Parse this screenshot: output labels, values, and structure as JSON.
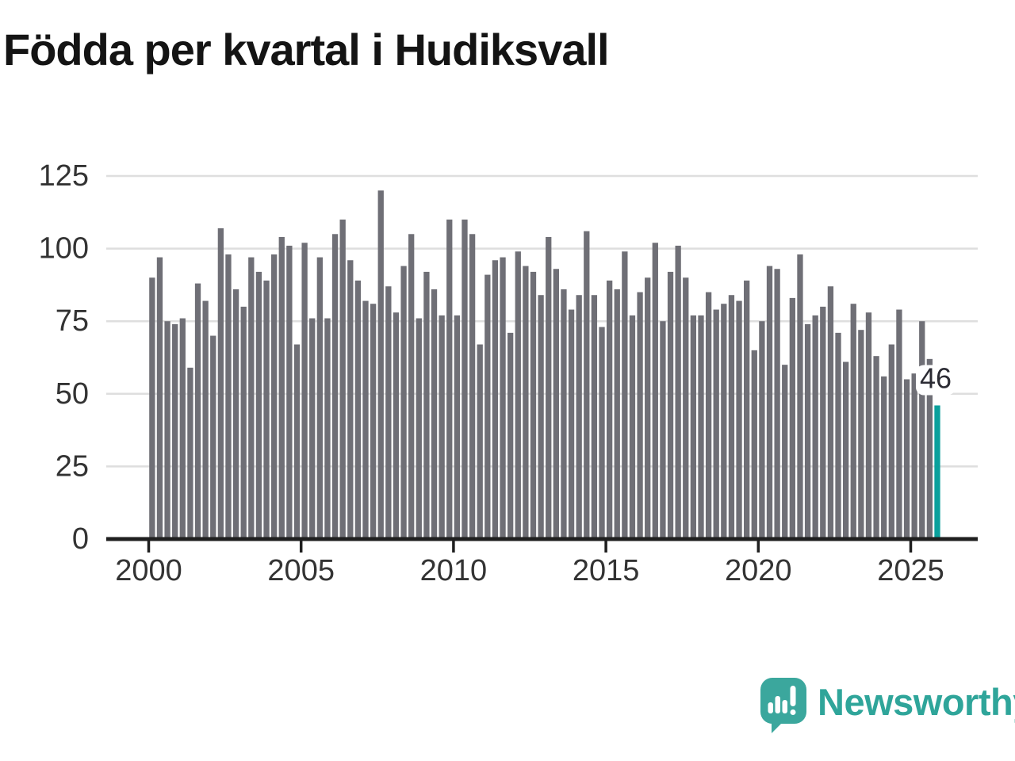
{
  "title": "Födda per kvartal i Hudiksvall",
  "chart_data": {
    "type": "bar",
    "start_period": "2000 Q1",
    "end_period": "2025 Q4",
    "frequency": "quarterly",
    "values": [
      90,
      97,
      75,
      74,
      76,
      59,
      88,
      82,
      70,
      107,
      98,
      86,
      80,
      97,
      92,
      89,
      98,
      104,
      101,
      67,
      102,
      76,
      97,
      76,
      105,
      110,
      96,
      89,
      82,
      81,
      120,
      87,
      78,
      94,
      105,
      76,
      92,
      86,
      77,
      110,
      77,
      110,
      105,
      67,
      91,
      96,
      97,
      71,
      99,
      94,
      92,
      84,
      104,
      93,
      86,
      79,
      84,
      106,
      84,
      73,
      89,
      86,
      99,
      77,
      85,
      90,
      102,
      75,
      92,
      101,
      90,
      77,
      77,
      85,
      79,
      81,
      84,
      82,
      89,
      65,
      75,
      94,
      93,
      60,
      83,
      98,
      74,
      77,
      80,
      87,
      71,
      61,
      81,
      72,
      78,
      63,
      56,
      67,
      79,
      55,
      57,
      75,
      62,
      46
    ],
    "highlight": {
      "index": 103,
      "value": 46,
      "label": "46"
    },
    "y_ticks": [
      0,
      25,
      50,
      75,
      100,
      125
    ],
    "x_ticks": [
      "2000",
      "2005",
      "2010",
      "2015",
      "2020",
      "2025"
    ],
    "ylim": [
      0,
      125
    ],
    "grid": true,
    "legend": "none",
    "title": "Födda per kvartal i Hudiksvall",
    "xlabel": "",
    "ylabel": ""
  },
  "annotation": {
    "last_value_label": "46"
  },
  "logo": {
    "text": "Newsworthy",
    "icon": "newsworthy-speech-bubble-chart-icon"
  },
  "colors": {
    "background": "#ffffff",
    "bar": "#6f6f76",
    "highlight_bar": "#0aa09c",
    "grid": "#dedede",
    "axis": "#1f1f1f",
    "tick_label": "#333333",
    "title": "#141414",
    "annotation_text": "#2b2b33",
    "annotation_bg": "#ffffff",
    "logo": "#3ba79d",
    "logo_text": "#2fa59a"
  }
}
